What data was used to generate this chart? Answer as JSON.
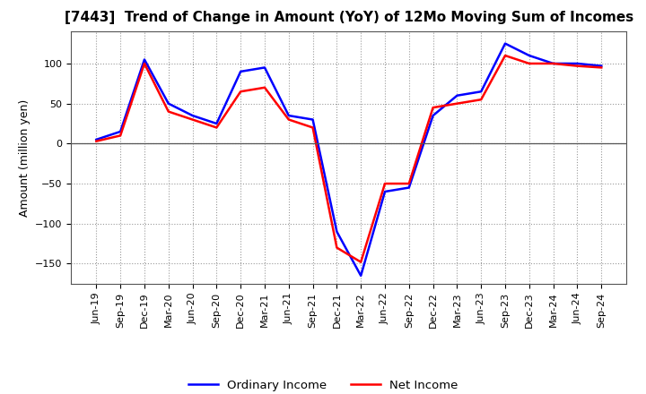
{
  "title": "[7443]  Trend of Change in Amount (YoY) of 12Mo Moving Sum of Incomes",
  "ylabel": "Amount (million yen)",
  "x_labels": [
    "Jun-19",
    "Sep-19",
    "Dec-19",
    "Mar-20",
    "Jun-20",
    "Sep-20",
    "Dec-20",
    "Mar-21",
    "Jun-21",
    "Sep-21",
    "Dec-21",
    "Mar-22",
    "Jun-22",
    "Sep-22",
    "Dec-22",
    "Mar-23",
    "Jun-23",
    "Sep-23",
    "Dec-23",
    "Mar-24",
    "Jun-24",
    "Sep-24"
  ],
  "ordinary_income": [
    5,
    15,
    105,
    50,
    35,
    25,
    90,
    95,
    35,
    30,
    -110,
    -165,
    -60,
    -55,
    35,
    60,
    65,
    125,
    110,
    100,
    100,
    97
  ],
  "net_income": [
    3,
    10,
    100,
    40,
    30,
    20,
    65,
    70,
    30,
    20,
    -130,
    -148,
    -50,
    -50,
    45,
    50,
    55,
    110,
    100,
    100,
    97,
    95
  ],
  "ordinary_color": "#0000ff",
  "net_color": "#ff0000",
  "ylim": [
    -175,
    140
  ],
  "yticks": [
    100,
    50,
    0,
    -50,
    -100,
    -150
  ],
  "background_color": "#ffffff",
  "legend_labels": [
    "Ordinary Income",
    "Net Income"
  ],
  "title_fontsize": 11,
  "tick_fontsize": 8,
  "ylabel_fontsize": 9
}
